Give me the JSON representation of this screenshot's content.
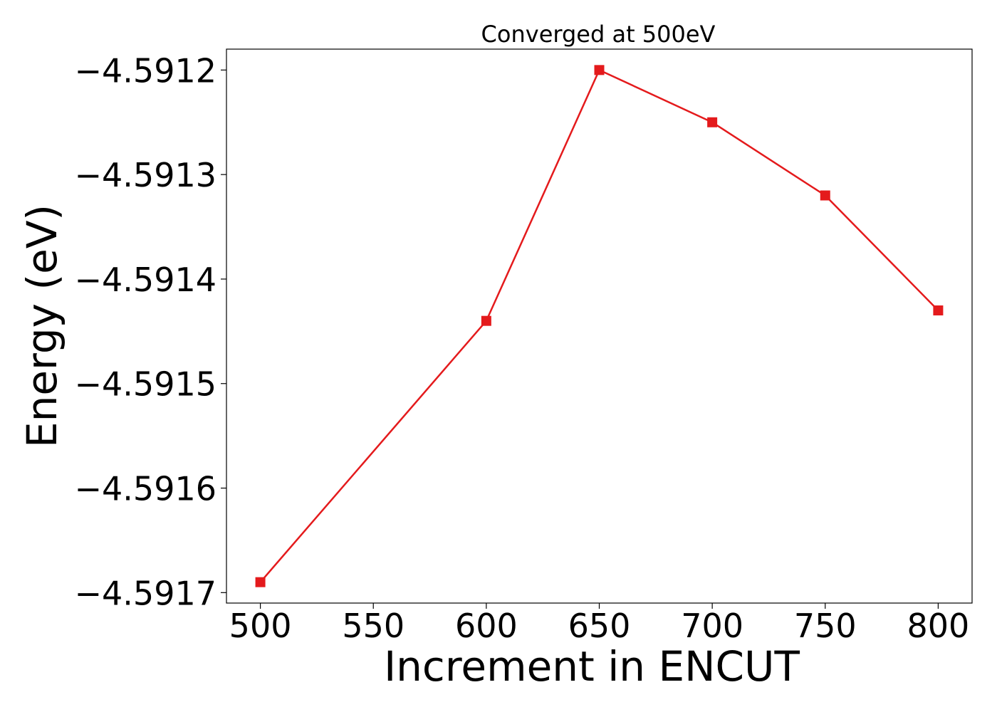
{
  "chart_data": {
    "type": "line",
    "title": "Converged at 500eV",
    "xlabel": "Increment in ENCUT",
    "ylabel": "Energy (eV)",
    "x": [
      500,
      600,
      650,
      700,
      750,
      800
    ],
    "series": [
      {
        "values": [
          -4.59169,
          -4.59144,
          -4.5912,
          -4.59125,
          -4.59132,
          -4.59143
        ],
        "color": "#e41a1c",
        "marker": "square"
      }
    ],
    "xlim": [
      485,
      815
    ],
    "ylim": [
      -4.59171,
      -4.59118
    ],
    "xticks": [
      500,
      550,
      600,
      650,
      700,
      750,
      800
    ],
    "xtick_labels": [
      "500",
      "550",
      "600",
      "650",
      "700",
      "750",
      "800"
    ],
    "yticks": [
      -4.5917,
      -4.5916,
      -4.5915,
      -4.5914,
      -4.5913,
      -4.5912
    ],
    "ytick_labels": [
      "−4.5917",
      "−4.5916",
      "−4.5915",
      "−4.5914",
      "−4.5913",
      "−4.5912"
    ],
    "grid": false,
    "legend": "none"
  }
}
